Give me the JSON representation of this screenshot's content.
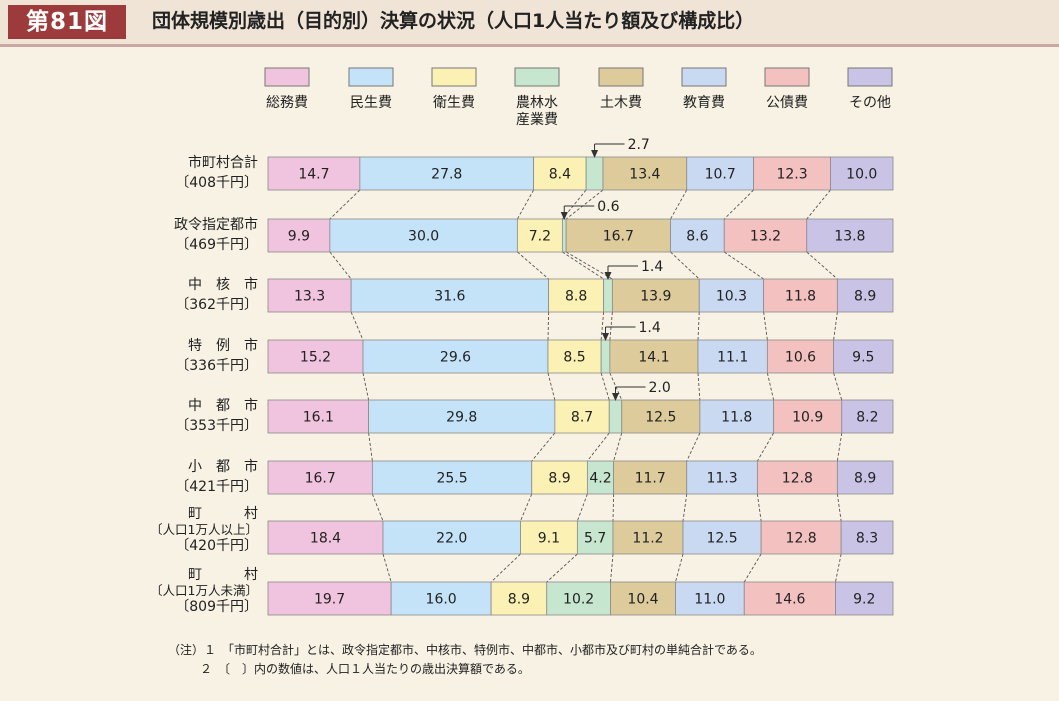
{
  "figure_label": "第81図",
  "title": "団体規模別歳出（目的別）決算の状況（人口1人当たり額及び構成比）",
  "notes": [
    "（注）１　「市町村合計」とは、政令指定都市、中核市、特例市、中都市、小都市及び町村の単純合計である。",
    "２　〔　〕内の数値は、人口１人当たりの歳出決算額である。"
  ],
  "chart_data": {
    "type": "bar",
    "orientation": "horizontal",
    "stacked": true,
    "normalized": true,
    "xlim": [
      0,
      100
    ],
    "legend_position": "top",
    "grid": false,
    "categories": [
      [
        "市町村合計",
        "〔408千円〕"
      ],
      [
        "政令指定都市",
        "〔469千円〕"
      ],
      [
        "中　核　市",
        "〔362千円〕"
      ],
      [
        "特　例　市",
        "〔336千円〕"
      ],
      [
        "中　都　市",
        "〔353千円〕"
      ],
      [
        "小　都　市",
        "〔421千円〕"
      ],
      [
        "町　　　村",
        "〔人口1万人以上〕",
        "〔420千円〕"
      ],
      [
        "町　　　村",
        "〔人口1万人未満〕",
        "〔809千円〕"
      ]
    ],
    "series": [
      {
        "name": "総務費",
        "color": "#f0c4de",
        "values": [
          14.7,
          9.9,
          13.3,
          15.2,
          16.1,
          16.7,
          18.4,
          19.7
        ]
      },
      {
        "name": "民生費",
        "color": "#c5e3f8",
        "values": [
          27.8,
          30.0,
          31.6,
          29.6,
          29.8,
          25.5,
          22.0,
          16.0
        ]
      },
      {
        "name": "衛生費",
        "color": "#fbf1b4",
        "values": [
          8.4,
          7.2,
          8.8,
          8.5,
          8.7,
          8.9,
          9.1,
          8.9
        ]
      },
      {
        "name": "農林水\n産業費",
        "color": "#c6e6cf",
        "values": [
          2.7,
          0.6,
          1.4,
          1.4,
          2.0,
          4.2,
          5.7,
          10.2
        ]
      },
      {
        "name": "土木費",
        "color": "#ddcb9c",
        "values": [
          13.4,
          16.7,
          13.9,
          14.1,
          12.5,
          11.7,
          11.2,
          10.4
        ]
      },
      {
        "name": "教育費",
        "color": "#cad9f2",
        "values": [
          10.7,
          8.6,
          10.3,
          11.1,
          11.8,
          11.3,
          12.5,
          11.0
        ]
      },
      {
        "name": "公債費",
        "color": "#f2c1c0",
        "values": [
          12.3,
          13.2,
          11.8,
          10.6,
          10.9,
          12.8,
          12.8,
          14.6
        ]
      },
      {
        "name": "その他",
        "color": "#c9c3e6",
        "values": [
          10.0,
          13.8,
          8.9,
          9.5,
          8.2,
          8.9,
          8.3,
          9.2
        ]
      }
    ],
    "callouts": [
      {
        "row": 0,
        "series": 3,
        "label": "2.7"
      },
      {
        "row": 1,
        "series": 3,
        "label": "0.6"
      },
      {
        "row": 2,
        "series": 3,
        "label": "1.4"
      },
      {
        "row": 3,
        "series": 3,
        "label": "1.4"
      },
      {
        "row": 4,
        "series": 3,
        "label": "2.0"
      }
    ]
  }
}
